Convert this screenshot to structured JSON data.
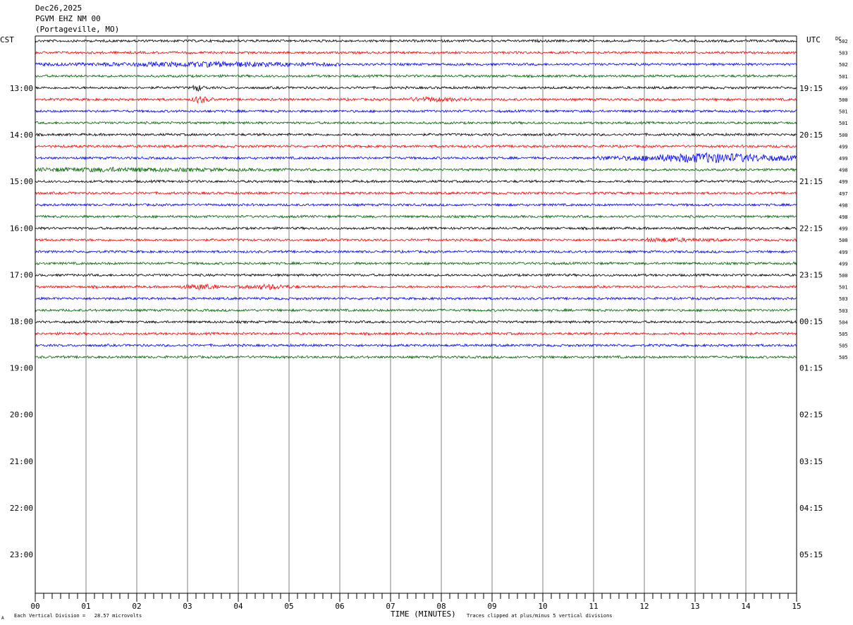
{
  "header": {
    "date": "Dec26,2025",
    "station": "PGVM EHZ NM 00",
    "location": "(Portageville, MO)"
  },
  "chart_data": {
    "type": "line",
    "left_axis_label": "CST",
    "right_axis_label": "UTC",
    "dc_label": "DC",
    "xlabel": "TIME (MINUTES)",
    "x_ticks": [
      "00",
      "01",
      "02",
      "03",
      "04",
      "05",
      "06",
      "07",
      "08",
      "09",
      "10",
      "11",
      "12",
      "13",
      "14",
      "15"
    ],
    "xlim": [
      0,
      15
    ],
    "left_hour_labels": [
      "13:00",
      "14:00",
      "15:00",
      "16:00",
      "17:00",
      "18:00",
      "19:00",
      "20:00",
      "21:00",
      "22:00",
      "23:00"
    ],
    "right_hour_labels": [
      "19:15",
      "20:15",
      "21:15",
      "22:15",
      "23:15",
      "00:15",
      "01:15",
      "02:15",
      "03:15",
      "04:15",
      "05:15"
    ],
    "trace_colors": [
      "#000000",
      "#ff0000",
      "#0000ff",
      "#006400"
    ],
    "traces_per_hour": 4,
    "trace_dc_values": [
      "502",
      "503",
      "502",
      "501",
      "499",
      "500",
      "501",
      "501",
      "500",
      "499",
      "499",
      "498",
      "499",
      "497",
      "498",
      "498",
      "499",
      "500",
      "499",
      "499",
      "500",
      "501",
      "503",
      "503",
      "504",
      "505",
      "505",
      "505"
    ],
    "events": [
      {
        "trace": 2,
        "start_min": 0.0,
        "end_min": 6.0,
        "amp": 2.6,
        "peak_min": 3.5
      },
      {
        "trace": 4,
        "start_min": 3.1,
        "end_min": 3.4,
        "amp": 3.5,
        "peak_min": 3.2
      },
      {
        "trace": 5,
        "start_min": 3.1,
        "end_min": 3.5,
        "amp": 4.5,
        "peak_min": 3.25
      },
      {
        "trace": 5,
        "start_min": 7.2,
        "end_min": 8.6,
        "amp": 2.2,
        "peak_min": 7.8
      },
      {
        "trace": 10,
        "start_min": 11.0,
        "end_min": 15.0,
        "amp": 6.0,
        "peak_min": 13.3
      },
      {
        "trace": 11,
        "start_min": 0.0,
        "end_min": 5.0,
        "amp": 2.0,
        "peak_min": 1.5
      },
      {
        "trace": 17,
        "start_min": 12.0,
        "end_min": 13.5,
        "amp": 1.8,
        "peak_min": 12.4
      },
      {
        "trace": 21,
        "start_min": 2.8,
        "end_min": 3.6,
        "amp": 3.0,
        "peak_min": 3.3
      },
      {
        "trace": 21,
        "start_min": 4.0,
        "end_min": 5.2,
        "amp": 2.6,
        "peak_min": 4.6
      }
    ]
  },
  "footer": {
    "division_text": "Each Vertical Division =   28.57 microvolts",
    "clip_text": "Traces clipped at plus/minus 5 vertical divisions",
    "corner_mark": "A"
  }
}
